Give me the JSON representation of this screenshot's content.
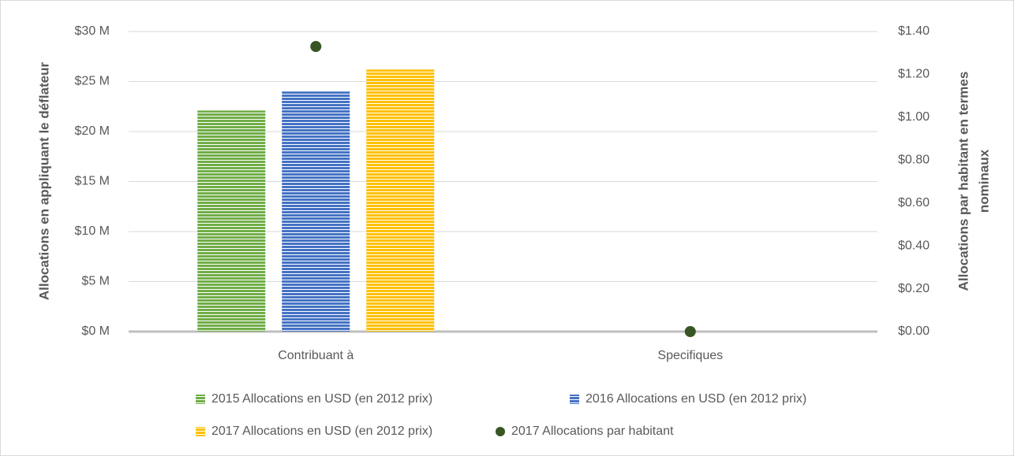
{
  "chart_data": {
    "type": "bar",
    "categories": [
      "Contribuant à",
      "Specifiques"
    ],
    "series": [
      {
        "name": "2015 Allocations en USD (en 2012 prix)",
        "color": "#70ad47",
        "values": [
          22100000,
          0
        ]
      },
      {
        "name": "2016 Allocations en USD (en 2012 prix)",
        "color": "#4472c4",
        "values": [
          24000000,
          0
        ]
      },
      {
        "name": "2017 Allocations en USD (en 2012 prix)",
        "color": "#ffc000",
        "values": [
          26200000,
          0
        ]
      },
      {
        "name": "2017 Allocations par habitant",
        "color": "#375623",
        "type": "scatter",
        "axis": "y2",
        "values": [
          1.33,
          0.0
        ]
      }
    ],
    "ylabel": "Allocations en appliquant le déflateur",
    "y2label": [
      "Allocations par habitant en termes",
      "nominaux"
    ],
    "ylim": [
      0,
      30000000
    ],
    "yticks": [
      {
        "value": 0,
        "label": "$0 M"
      },
      {
        "value": 5000000,
        "label": "$5 M"
      },
      {
        "value": 10000000,
        "label": "$10 M"
      },
      {
        "value": 15000000,
        "label": "$15 M"
      },
      {
        "value": 20000000,
        "label": "$20 M"
      },
      {
        "value": 25000000,
        "label": "$25 M"
      },
      {
        "value": 30000000,
        "label": "$30 M"
      }
    ],
    "y2lim": [
      0,
      1.4
    ],
    "y2ticks": [
      {
        "value": 0,
        "label": "$0.00"
      },
      {
        "value": 0.2,
        "label": "$0.20"
      },
      {
        "value": 0.4,
        "label": "$0.40"
      },
      {
        "value": 0.6,
        "label": "$0.60"
      },
      {
        "value": 0.8,
        "label": "$0.80"
      },
      {
        "value": 1.0,
        "label": "$1.00"
      },
      {
        "value": 1.2,
        "label": "$1.20"
      },
      {
        "value": 1.4,
        "label": "$1.40"
      }
    ],
    "grid": true,
    "legend": "bottom"
  }
}
